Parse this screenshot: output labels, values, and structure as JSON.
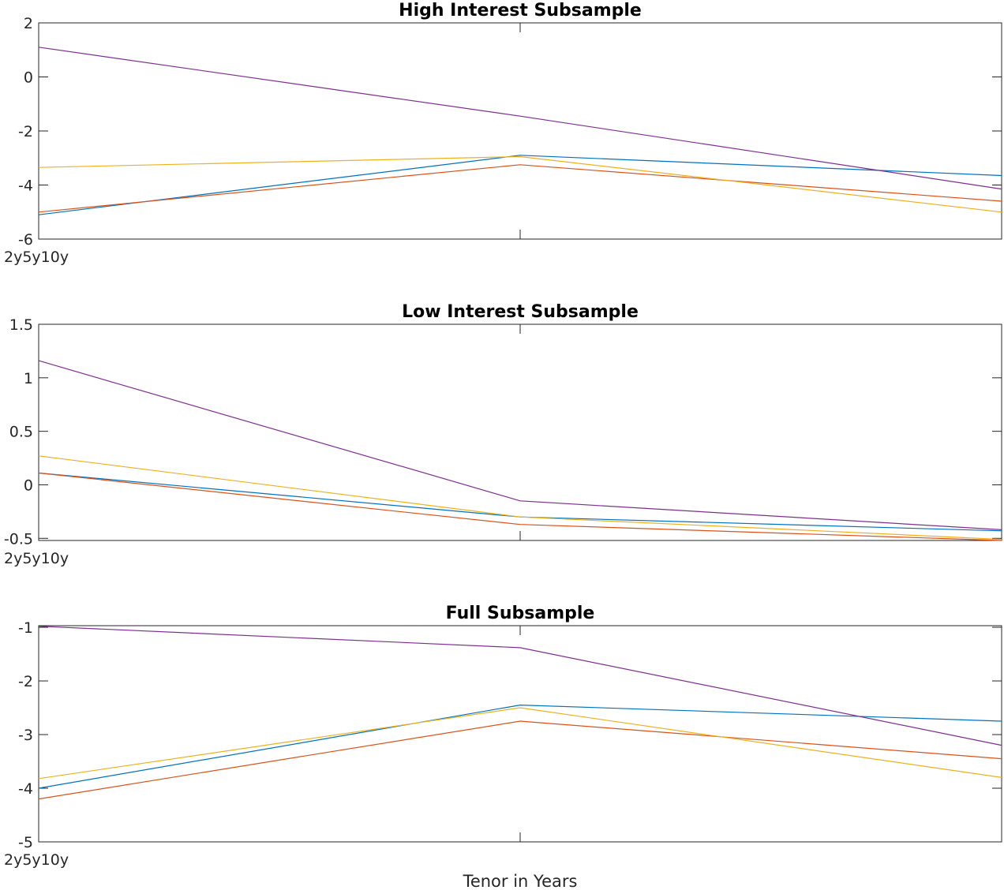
{
  "chart_data": [
    {
      "type": "line",
      "title": "High Interest Subsample",
      "x": [
        2,
        5,
        10
      ],
      "xlim": [
        2,
        10
      ],
      "x_tick_label": "2y5y10y",
      "ylim": [
        -6,
        2
      ],
      "yticks": [
        -6,
        -4,
        -2,
        0,
        2
      ],
      "ytick_labels": [
        "-6",
        "-4",
        "-2",
        "0",
        "2"
      ],
      "series": [
        {
          "color": "#0072BD",
          "values": [
            -5.1,
            -2.9,
            -3.65
          ]
        },
        {
          "color": "#D95319",
          "values": [
            -5.0,
            -3.25,
            -4.6
          ]
        },
        {
          "color": "#EDB120",
          "values": [
            -3.35,
            -2.95,
            -5.0
          ]
        },
        {
          "color": "#7E2F8E",
          "values": [
            1.1,
            -1.45,
            -4.15
          ]
        }
      ]
    },
    {
      "type": "line",
      "title": "Low Interest Subsample",
      "x": [
        2,
        5,
        10
      ],
      "xlim": [
        2,
        10
      ],
      "x_tick_label": "2y5y10y",
      "ylim": [
        -0.52,
        1.5
      ],
      "yticks": [
        -0.5,
        0,
        0.5,
        1,
        1.5
      ],
      "ytick_labels": [
        "-0.5",
        "0",
        "0.5",
        "1",
        "1.5"
      ],
      "series": [
        {
          "color": "#0072BD",
          "values": [
            0.11,
            -0.3,
            -0.43
          ]
        },
        {
          "color": "#D95319",
          "values": [
            0.11,
            -0.37,
            -0.52
          ]
        },
        {
          "color": "#EDB120",
          "values": [
            0.27,
            -0.3,
            -0.51
          ]
        },
        {
          "color": "#7E2F8E",
          "values": [
            1.16,
            -0.15,
            -0.42
          ]
        }
      ]
    },
    {
      "type": "line",
      "title": "Full Subsample",
      "x": [
        2,
        5,
        10
      ],
      "xlim": [
        2,
        10
      ],
      "x_tick_label": "2y5y10y",
      "xlabel": "Tenor in Years",
      "ylim": [
        -5,
        -0.97
      ],
      "yticks": [
        -5,
        -4,
        -3,
        -2,
        -1
      ],
      "ytick_labels": [
        "-5",
        "-4",
        "-3",
        "-2",
        "-1"
      ],
      "series": [
        {
          "color": "#0072BD",
          "values": [
            -4.0,
            -2.45,
            -2.75
          ]
        },
        {
          "color": "#D95319",
          "values": [
            -4.2,
            -2.75,
            -3.45
          ]
        },
        {
          "color": "#EDB120",
          "values": [
            -3.82,
            -2.5,
            -3.8
          ]
        },
        {
          "color": "#7E2F8E",
          "values": [
            -0.98,
            -1.38,
            -3.2
          ]
        }
      ]
    }
  ]
}
